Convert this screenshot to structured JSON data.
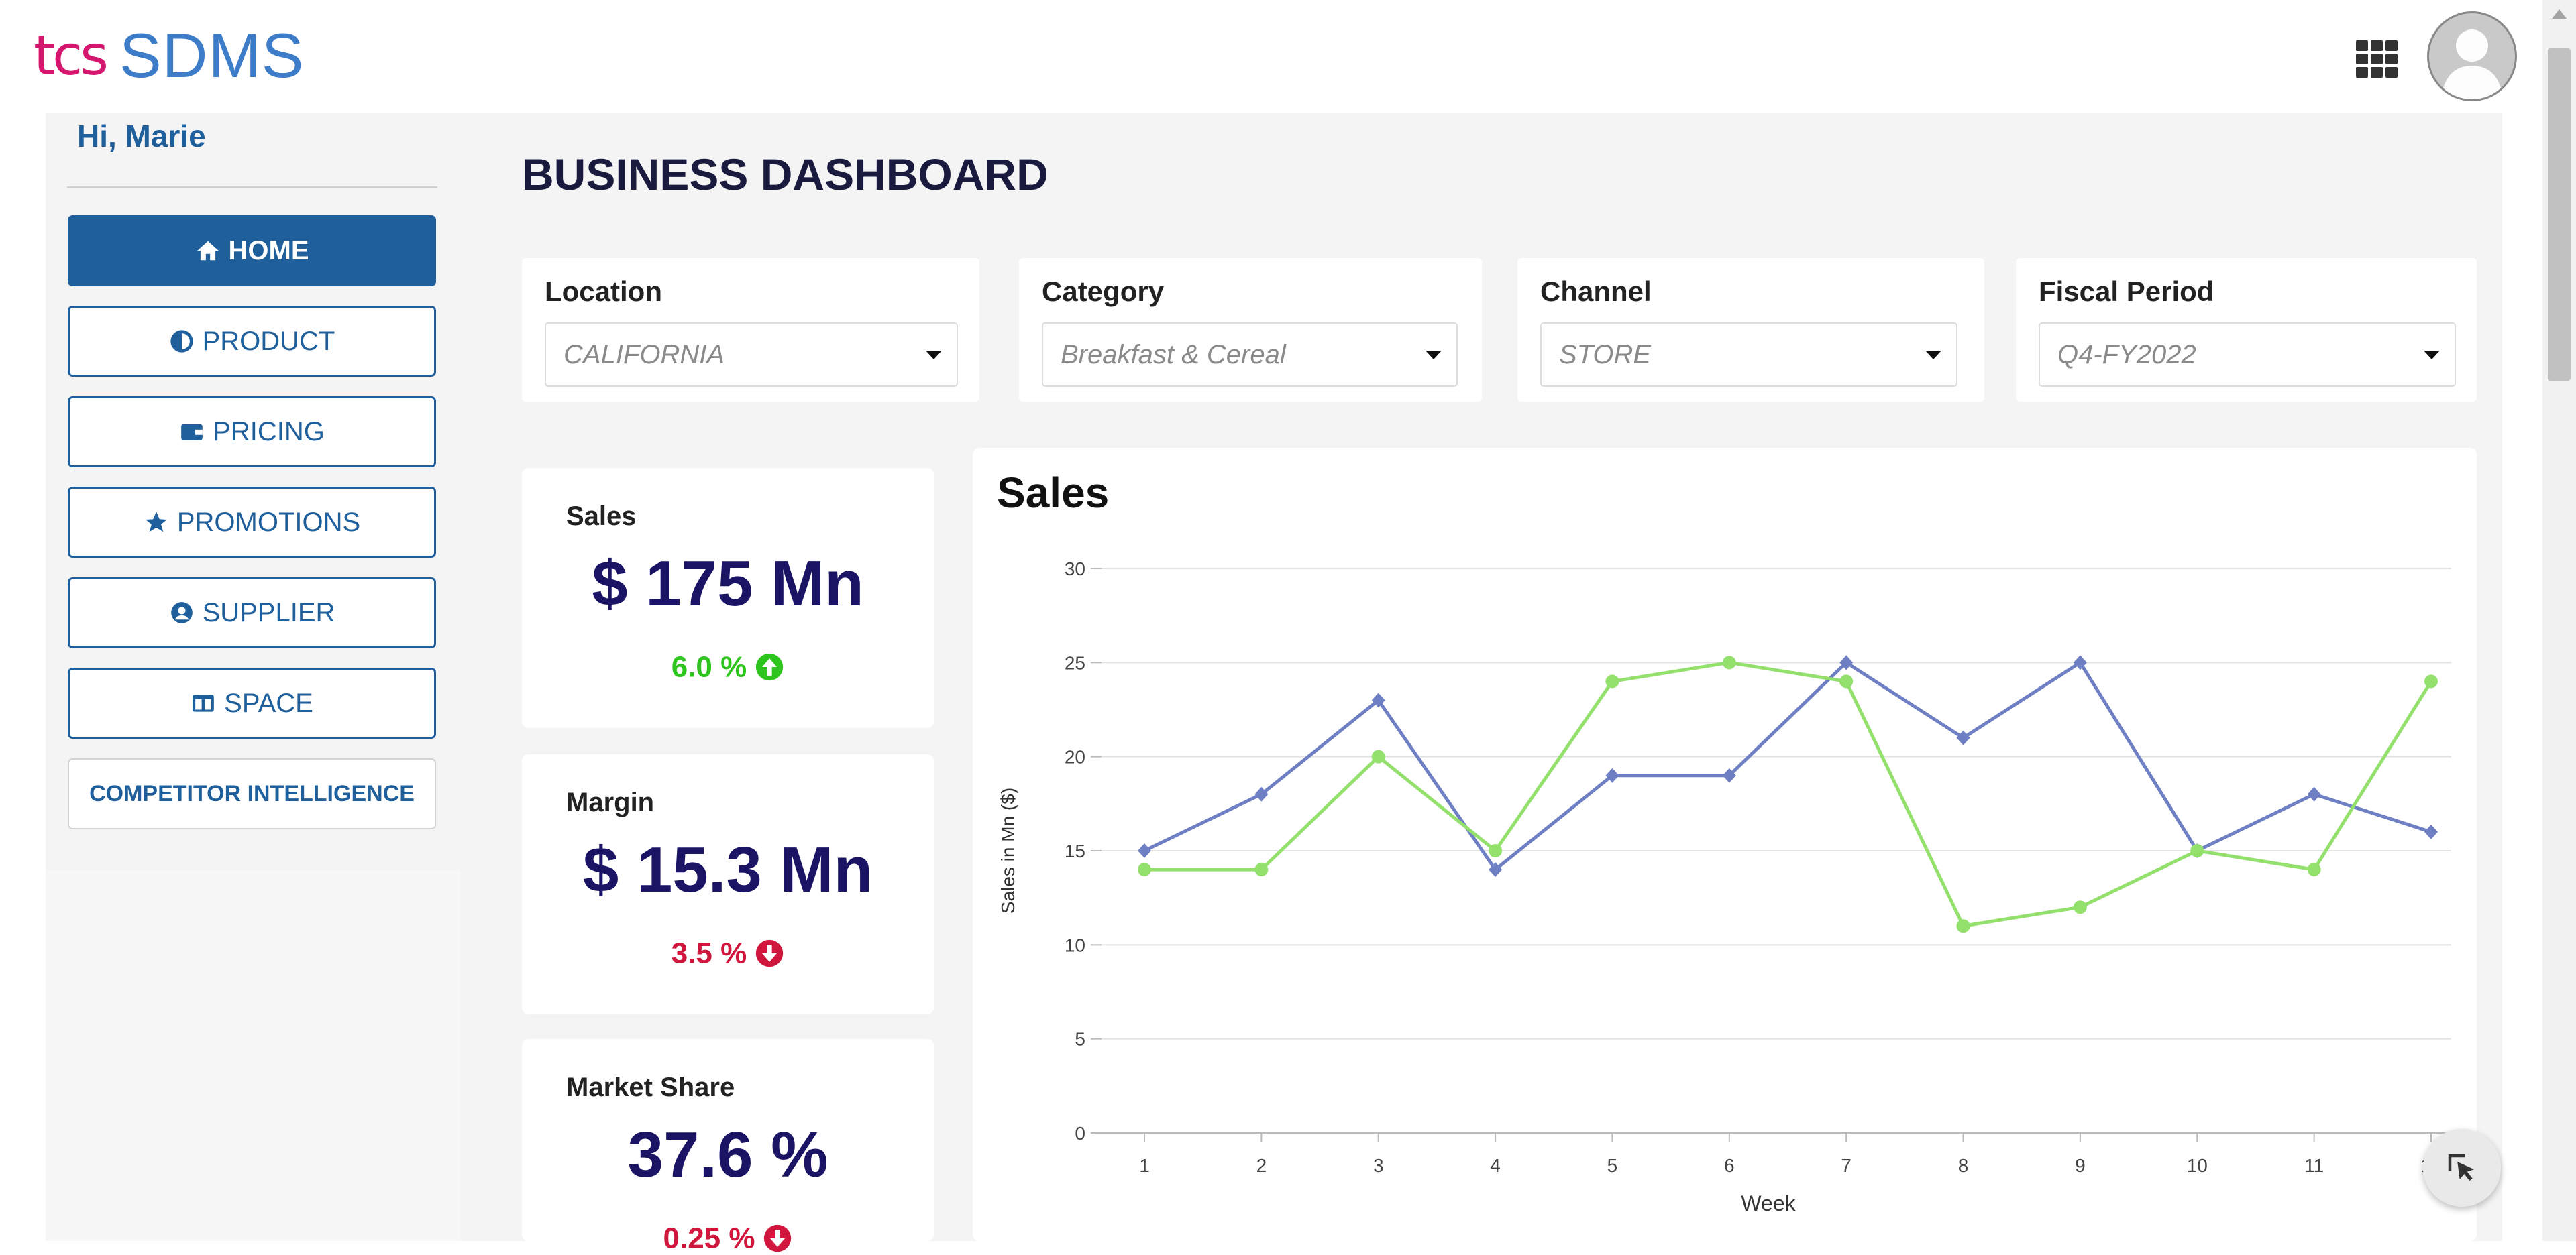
{
  "header": {
    "logo_mark": "tcs",
    "logo_name": "SDMS",
    "apps_icon": "grid-apps-icon",
    "avatar_icon": "user-avatar-icon"
  },
  "sidebar": {
    "greeting": "Hi, Marie",
    "items": [
      {
        "label": "HOME",
        "icon": "home-icon",
        "active": true
      },
      {
        "label": "PRODUCT",
        "icon": "half-circle-icon",
        "active": false
      },
      {
        "label": "PRICING",
        "icon": "wallet-icon",
        "active": false
      },
      {
        "label": "PROMOTIONS",
        "icon": "star-icon",
        "active": false
      },
      {
        "label": "SUPPLIER",
        "icon": "user-circle-icon",
        "active": false
      },
      {
        "label": "SPACE",
        "icon": "columns-icon",
        "active": false
      },
      {
        "label": "COMPETITOR INTELLIGENCE",
        "icon": "",
        "active": false
      }
    ]
  },
  "page": {
    "title": "BUSINESS DASHBOARD"
  },
  "filters": [
    {
      "label": "Location",
      "value": "CALIFORNIA"
    },
    {
      "label": "Category",
      "value": "Breakfast & Cereal"
    },
    {
      "label": "Channel",
      "value": "STORE"
    },
    {
      "label": "Fiscal Period",
      "value": "Q4-FY2022"
    }
  ],
  "kpis": [
    {
      "label": "Sales",
      "value": "$ 175 Mn",
      "change": "6.0 %",
      "direction": "up",
      "color": "#2ec41e"
    },
    {
      "label": "Margin",
      "value": "$ 15.3 Mn",
      "change": "3.5 %",
      "direction": "down",
      "color": "#d0163c"
    },
    {
      "label": "Market Share",
      "value": "37.6 %",
      "change": "0.25 %",
      "direction": "down",
      "color": "#d0163c"
    }
  ],
  "colors": {
    "brand_blue": "#1f5f9b",
    "kpi_navy": "#1b1464",
    "series_blue": "#6f7fc4",
    "series_green": "#94e06d"
  },
  "chart_data": {
    "type": "line",
    "title": "Sales",
    "xlabel": "Week",
    "ylabel": "Sales in Mn ($)",
    "x": [
      1,
      2,
      3,
      4,
      5,
      6,
      7,
      8,
      9,
      10,
      11,
      12
    ],
    "ylim": [
      0,
      30
    ],
    "yticks": [
      0,
      5,
      10,
      15,
      20,
      25,
      30
    ],
    "grid": true,
    "series": [
      {
        "color": "#6f7fc4",
        "marker": "diamond",
        "values": [
          15,
          18,
          23,
          14,
          19,
          19,
          25,
          21,
          25,
          15,
          18,
          16
        ]
      },
      {
        "color": "#94e06d",
        "marker": "circle",
        "values": [
          14,
          14,
          20,
          15,
          24,
          25,
          24,
          11,
          12,
          15,
          14,
          24
        ]
      }
    ]
  },
  "floating": {
    "cursor_button_icon": "pointer-select-icon"
  }
}
